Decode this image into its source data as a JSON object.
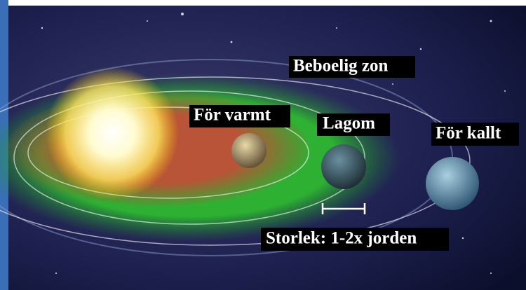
{
  "labels": {
    "zone": "Beboelig zon",
    "too_hot": "För varmt",
    "just_right": "Lagom",
    "too_cold": "För kallt",
    "size": "Storlek: 1-2x jorden"
  }
}
